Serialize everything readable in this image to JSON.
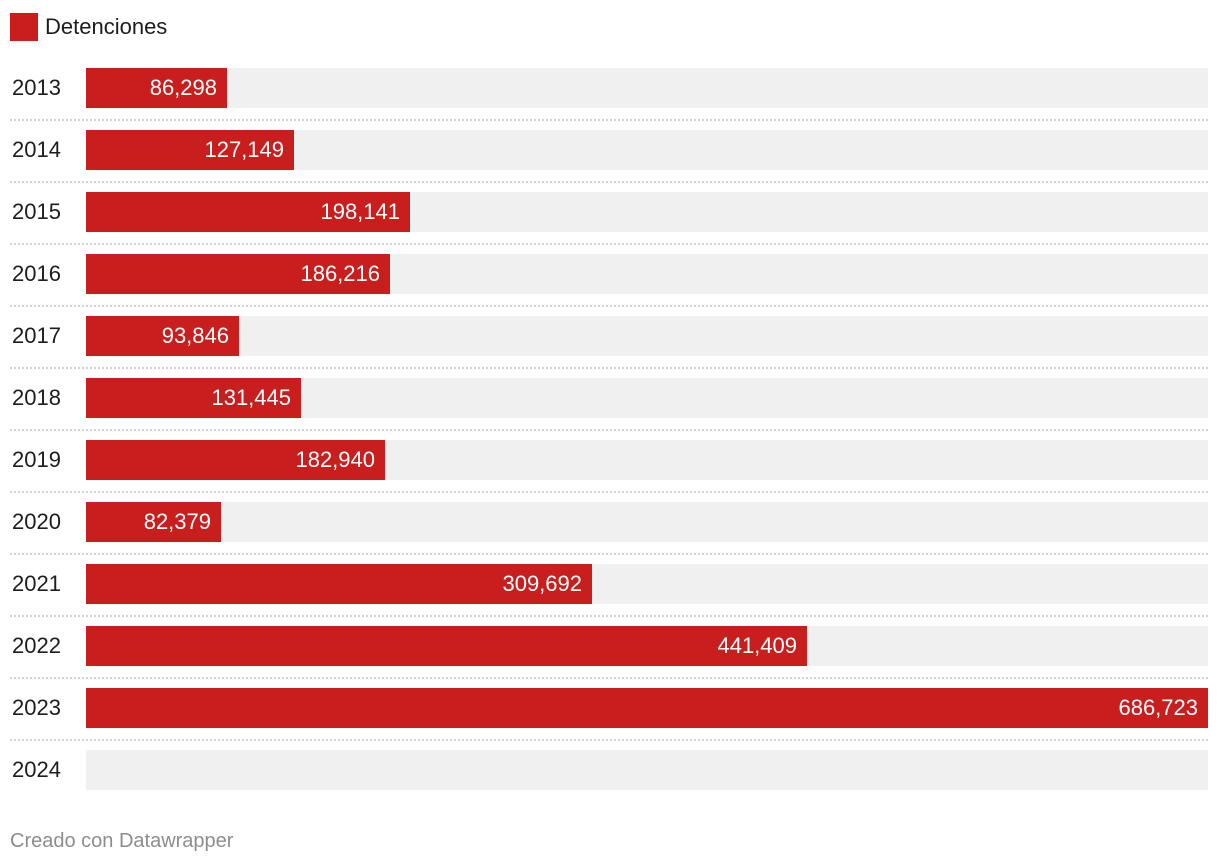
{
  "chart_data": {
    "type": "bar",
    "orientation": "horizontal",
    "categories": [
      "2013",
      "2014",
      "2015",
      "2016",
      "2017",
      "2018",
      "2019",
      "2020",
      "2021",
      "2022",
      "2023",
      "2024"
    ],
    "series": [
      {
        "name": "Detenciones",
        "values": [
          86298,
          127149,
          198141,
          186216,
          93846,
          131445,
          182940,
          82379,
          309692,
          441409,
          686723,
          null
        ],
        "labels": [
          "86,298",
          "127,149",
          "198,141",
          "186,216",
          "93,846",
          "131,445",
          "182,940",
          "82,379",
          "309,692",
          "441,409",
          "686,723",
          ""
        ]
      }
    ],
    "xlim": [
      0,
      686723
    ],
    "grid": false,
    "legend_position": "top-left",
    "bar_color": "#c81e1e",
    "track_color": "#f0f0f0"
  },
  "legend": {
    "label": "Detenciones",
    "color": "#c81e1e"
  },
  "footer": {
    "credit": "Creado con Datawrapper"
  }
}
